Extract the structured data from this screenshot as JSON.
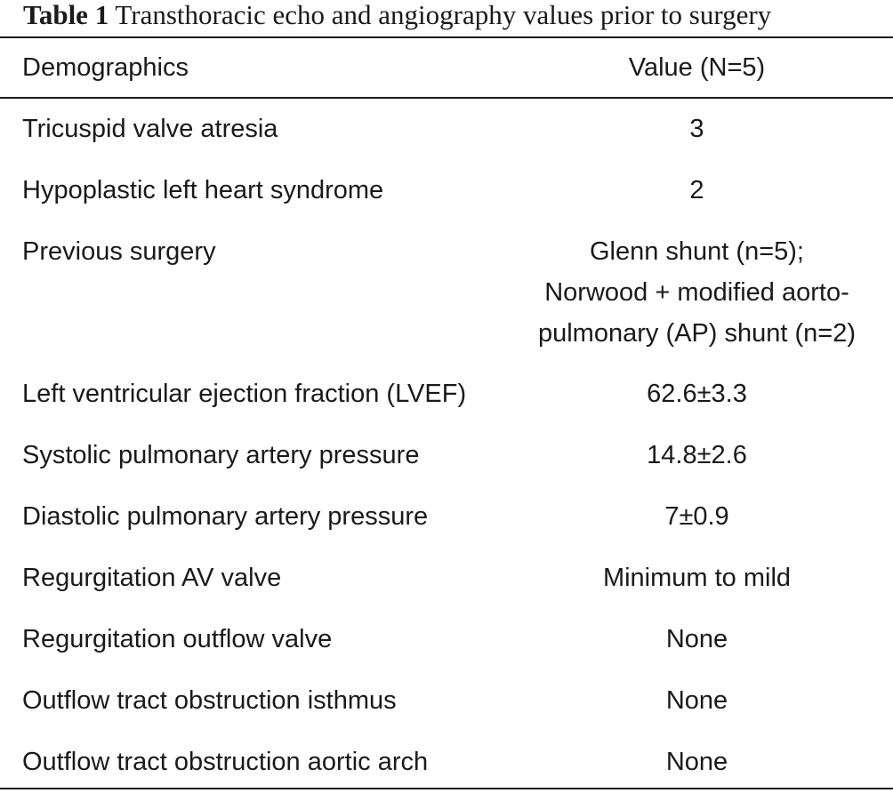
{
  "caption": {
    "label": "Table 1",
    "text": "Transthoracic echo and angiography values prior to surgery"
  },
  "header": {
    "col1": "Demographics",
    "col2": "Value (N=5)"
  },
  "rows": [
    {
      "label": "Tricuspid valve atresia",
      "value": [
        "3"
      ]
    },
    {
      "label": "Hypoplastic left heart syndrome",
      "value": [
        "2"
      ]
    },
    {
      "label": "Previous surgery",
      "value": [
        "Glenn shunt (n=5);",
        "Norwood + modified aorto-",
        "pulmonary (AP) shunt (n=2)"
      ]
    },
    {
      "label": "Left ventricular ejection fraction (LVEF)",
      "value": [
        "62.6±3.3"
      ]
    },
    {
      "label": "Systolic pulmonary artery pressure",
      "value": [
        "14.8±2.6"
      ]
    },
    {
      "label": "Diastolic pulmonary artery pressure",
      "value": [
        "7±0.9"
      ]
    },
    {
      "label": "Regurgitation AV valve",
      "value": [
        "Minimum to mild"
      ]
    },
    {
      "label": "Regurgitation outflow valve",
      "value": [
        "None"
      ]
    },
    {
      "label": "Outflow tract obstruction isthmus",
      "value": [
        "None"
      ]
    },
    {
      "label": "Outflow tract obstruction aortic arch",
      "value": [
        "None"
      ]
    }
  ]
}
